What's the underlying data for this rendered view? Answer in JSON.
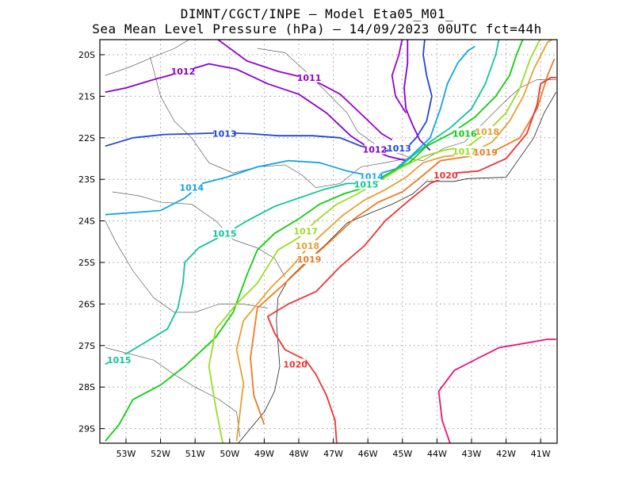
{
  "title_line1": "DIMNT/CGCT/INPE –  Model Eta05_M01_",
  "title_line2": "Sea Mean Level Pressure (hPa) – 14/09/2023 00UTC fct=44h",
  "lat_labels": [
    "20S",
    "21S",
    "22S",
    "23S",
    "24S",
    "25S",
    "26S",
    "27S",
    "28S",
    "29S"
  ],
  "lon_labels": [
    "53W",
    "52W",
    "51W",
    "50W",
    "49W",
    "48W",
    "47W",
    "46W",
    "45W",
    "44W",
    "43W",
    "42W",
    "41W"
  ],
  "colors": {
    "1011": "#9900cc",
    "1012": "#8800cc",
    "1013": "#2244dd",
    "1014": "#11a3e8",
    "1015": "#11c49a",
    "1016": "#11cc11",
    "1017": "#99dd22",
    "1018": "#e6a030",
    "1019": "#ee7a22",
    "1020": "#ee3333",
    "1021": "#ee1177"
  },
  "contour_labels": [
    {
      "text": "1011",
      "lev": "1011",
      "lon": -47.7,
      "lat": -20.55
    },
    {
      "text": "1012",
      "lev": "1012",
      "lon": -51.35,
      "lat": -20.4
    },
    {
      "text": "1012",
      "lev": "1012",
      "lon": -45.8,
      "lat": -22.28
    },
    {
      "text": "1013",
      "lev": "1013",
      "lon": -50.15,
      "lat": -21.9
    },
    {
      "text": "1013",
      "lev": "1013",
      "lon": -45.1,
      "lat": -22.25
    },
    {
      "text": "1014",
      "lev": "1014",
      "lon": -51.1,
      "lat": -23.2
    },
    {
      "text": "1014",
      "lev": "1014",
      "lon": -45.9,
      "lat": -22.93
    },
    {
      "text": "1015",
      "lev": "1015",
      "lon": -50.15,
      "lat": -24.3
    },
    {
      "text": "1015",
      "lev": "1015",
      "lon": -46.05,
      "lat": -23.12
    },
    {
      "text": "1015",
      "lev": "1015",
      "lon": -53.2,
      "lat": -27.35
    },
    {
      "text": "1016",
      "lev": "1016",
      "lon": -43.2,
      "lat": -21.9
    },
    {
      "text": "1017",
      "lev": "1017",
      "lon": -47.8,
      "lat": -24.25
    },
    {
      "text": "1017",
      "lev": "1017",
      "lon": -43.2,
      "lat": -22.33
    },
    {
      "text": "1018",
      "lev": "1018",
      "lon": -47.75,
      "lat": -24.6
    },
    {
      "text": "1018",
      "lev": "1018",
      "lon": -42.55,
      "lat": -21.85
    },
    {
      "text": "1019",
      "lev": "1019",
      "lon": -47.7,
      "lat": -24.92
    },
    {
      "text": "1019",
      "lev": "1019",
      "lon": -42.6,
      "lat": -22.35
    },
    {
      "text": "1020",
      "lev": "1020",
      "lon": -43.75,
      "lat": -22.9
    },
    {
      "text": "1020",
      "lev": "1020",
      "lon": -48.1,
      "lat": -27.45
    }
  ],
  "isobars": [
    {
      "lev": "1011",
      "pts": [
        [
          -50.4,
          -19.6
        ],
        [
          -49.5,
          -20.15
        ],
        [
          -48.6,
          -20.4
        ],
        [
          -47.6,
          -20.6
        ],
        [
          -46.8,
          -20.95
        ],
        [
          -46.1,
          -21.5
        ],
        [
          -45.6,
          -21.9
        ],
        [
          -45.3,
          -22.05
        ]
      ]
    },
    {
      "lev": "1011",
      "pts": [
        [
          -45.0,
          -19.6
        ],
        [
          -45.1,
          -20.0
        ],
        [
          -45.3,
          -20.5
        ],
        [
          -45.2,
          -21.0
        ],
        [
          -44.9,
          -21.4
        ]
      ]
    },
    {
      "lev": "1012",
      "pts": [
        [
          -53.6,
          -20.9
        ],
        [
          -53.0,
          -20.8
        ],
        [
          -52.2,
          -20.6
        ],
        [
          -51.4,
          -20.42
        ],
        [
          -50.6,
          -20.22
        ],
        [
          -49.8,
          -20.35
        ],
        [
          -48.9,
          -20.7
        ],
        [
          -48.0,
          -20.95
        ],
        [
          -47.2,
          -21.4
        ],
        [
          -46.5,
          -21.95
        ],
        [
          -45.9,
          -22.28
        ],
        [
          -45.4,
          -22.45
        ],
        [
          -44.9,
          -22.55
        ]
      ]
    },
    {
      "lev": "1012",
      "pts": [
        [
          -44.85,
          -19.6
        ],
        [
          -44.85,
          -20.2
        ],
        [
          -44.95,
          -20.8
        ],
        [
          -44.9,
          -21.3
        ],
        [
          -44.7,
          -21.7
        ],
        [
          -44.5,
          -22.05
        ],
        [
          -44.2,
          -22.3
        ]
      ]
    },
    {
      "lev": "1013",
      "pts": [
        [
          -53.6,
          -22.2
        ],
        [
          -52.8,
          -22.0
        ],
        [
          -51.9,
          -21.92
        ],
        [
          -51.0,
          -21.9
        ],
        [
          -50.2,
          -21.88
        ],
        [
          -49.4,
          -21.9
        ],
        [
          -48.6,
          -21.95
        ],
        [
          -47.6,
          -21.95
        ],
        [
          -46.8,
          -22.0
        ],
        [
          -46.2,
          -22.2
        ],
        [
          -45.6,
          -22.3
        ],
        [
          -45.0,
          -22.35
        ],
        [
          -44.6,
          -22.0
        ],
        [
          -44.3,
          -21.6
        ],
        [
          -44.15,
          -21.0
        ],
        [
          -44.3,
          -20.5
        ],
        [
          -44.4,
          -20.0
        ],
        [
          -44.35,
          -19.6
        ]
      ]
    },
    {
      "lev": "1014",
      "pts": [
        [
          -53.6,
          -23.85
        ],
        [
          -52.8,
          -23.8
        ],
        [
          -52.0,
          -23.75
        ],
        [
          -51.3,
          -23.45
        ],
        [
          -50.8,
          -23.1
        ],
        [
          -50.1,
          -22.95
        ],
        [
          -49.2,
          -22.7
        ],
        [
          -48.3,
          -22.55
        ],
        [
          -47.4,
          -22.6
        ],
        [
          -46.6,
          -22.8
        ],
        [
          -45.9,
          -22.92
        ],
        [
          -45.2,
          -22.75
        ],
        [
          -44.7,
          -22.4
        ],
        [
          -44.2,
          -22.0
        ],
        [
          -43.9,
          -21.3
        ],
        [
          -43.7,
          -20.7
        ],
        [
          -43.4,
          -20.2
        ],
        [
          -43.1,
          -19.9
        ],
        [
          -42.9,
          -19.8
        ]
      ]
    },
    {
      "lev": "1015",
      "pts": [
        [
          -53.6,
          -27.45
        ],
        [
          -53.0,
          -27.2
        ],
        [
          -52.4,
          -26.9
        ],
        [
          -51.8,
          -26.6
        ],
        [
          -51.5,
          -26.1
        ],
        [
          -51.35,
          -25.5
        ],
        [
          -51.3,
          -25.0
        ],
        [
          -50.9,
          -24.65
        ],
        [
          -50.2,
          -24.35
        ],
        [
          -49.5,
          -24.0
        ],
        [
          -48.7,
          -23.65
        ],
        [
          -48.0,
          -23.45
        ],
        [
          -47.3,
          -23.25
        ],
        [
          -46.6,
          -23.1
        ],
        [
          -45.9,
          -23.1
        ],
        [
          -45.2,
          -22.8
        ],
        [
          -44.8,
          -22.5
        ],
        [
          -44.2,
          -22.1
        ],
        [
          -43.6,
          -21.75
        ],
        [
          -43.0,
          -21.3
        ],
        [
          -42.6,
          -20.7
        ],
        [
          -42.3,
          -20.0
        ],
        [
          -42.2,
          -19.6
        ]
      ]
    },
    {
      "lev": "1016",
      "pts": [
        [
          -53.6,
          -29.3
        ],
        [
          -53.2,
          -28.9
        ],
        [
          -52.8,
          -28.3
        ],
        [
          -52.0,
          -27.95
        ],
        [
          -51.3,
          -27.5
        ],
        [
          -50.4,
          -26.8
        ],
        [
          -49.9,
          -26.2
        ],
        [
          -49.5,
          -25.3
        ],
        [
          -49.2,
          -24.7
        ],
        [
          -48.7,
          -24.3
        ],
        [
          -48.0,
          -23.95
        ],
        [
          -47.4,
          -23.6
        ],
        [
          -46.7,
          -23.35
        ],
        [
          -46.1,
          -23.2
        ],
        [
          -45.5,
          -22.9
        ],
        [
          -44.8,
          -22.6
        ],
        [
          -44.3,
          -22.2
        ],
        [
          -43.6,
          -21.9
        ],
        [
          -42.9,
          -21.5
        ],
        [
          -42.3,
          -21.0
        ],
        [
          -41.9,
          -20.5
        ],
        [
          -41.7,
          -20.0
        ],
        [
          -41.5,
          -19.6
        ]
      ]
    },
    {
      "lev": "1017",
      "pts": [
        [
          -50.2,
          -29.35
        ],
        [
          -50.4,
          -28.5
        ],
        [
          -50.6,
          -27.5
        ],
        [
          -50.4,
          -26.6
        ],
        [
          -49.8,
          -26.0
        ],
        [
          -49.2,
          -25.5
        ],
        [
          -48.6,
          -24.7
        ],
        [
          -48.0,
          -24.4
        ],
        [
          -47.5,
          -24.0
        ],
        [
          -46.9,
          -23.6
        ],
        [
          -46.3,
          -23.35
        ],
        [
          -45.7,
          -23.05
        ],
        [
          -45.1,
          -22.75
        ],
        [
          -44.4,
          -22.45
        ],
        [
          -43.8,
          -22.3
        ],
        [
          -43.1,
          -22.2
        ],
        [
          -42.6,
          -21.9
        ],
        [
          -42.0,
          -21.4
        ],
        [
          -41.6,
          -20.8
        ],
        [
          -41.3,
          -20.1
        ],
        [
          -41.0,
          -19.6
        ]
      ]
    },
    {
      "lev": "1018",
      "pts": [
        [
          -49.8,
          -29.3
        ],
        [
          -49.7,
          -28.6
        ],
        [
          -49.6,
          -27.9
        ],
        [
          -49.8,
          -27.1
        ],
        [
          -49.6,
          -26.4
        ],
        [
          -48.8,
          -25.6
        ],
        [
          -48.2,
          -25.1
        ],
        [
          -47.8,
          -24.7
        ],
        [
          -47.3,
          -24.3
        ],
        [
          -46.7,
          -23.85
        ],
        [
          -46.1,
          -23.5
        ],
        [
          -45.5,
          -23.25
        ],
        [
          -44.9,
          -22.95
        ],
        [
          -44.4,
          -22.6
        ],
        [
          -43.8,
          -22.45
        ],
        [
          -43.1,
          -22.4
        ],
        [
          -42.4,
          -22.1
        ],
        [
          -41.9,
          -21.6
        ],
        [
          -41.5,
          -21.0
        ],
        [
          -41.2,
          -20.35
        ],
        [
          -40.8,
          -19.7
        ],
        [
          -40.6,
          -19.6
        ]
      ]
    },
    {
      "lev": "1019",
      "pts": [
        [
          -49.0,
          -28.9
        ],
        [
          -49.3,
          -28.2
        ],
        [
          -49.4,
          -27.3
        ],
        [
          -49.2,
          -26.1
        ],
        [
          -48.4,
          -25.5
        ],
        [
          -47.7,
          -24.95
        ],
        [
          -47.1,
          -24.5
        ],
        [
          -46.4,
          -23.95
        ],
        [
          -45.7,
          -23.55
        ],
        [
          -45.0,
          -23.3
        ],
        [
          -44.4,
          -22.9
        ],
        [
          -43.9,
          -22.55
        ],
        [
          -43.1,
          -22.45
        ],
        [
          -42.3,
          -22.3
        ],
        [
          -41.6,
          -22.0
        ],
        [
          -41.1,
          -21.3
        ],
        [
          -40.8,
          -20.5
        ],
        [
          -40.6,
          -20.1
        ]
      ]
    },
    {
      "lev": "1020",
      "pts": [
        [
          -46.9,
          -29.4
        ],
        [
          -46.95,
          -28.8
        ],
        [
          -47.2,
          -28.2
        ],
        [
          -47.5,
          -27.7
        ],
        [
          -47.8,
          -27.35
        ],
        [
          -48.4,
          -27.1
        ],
        [
          -48.7,
          -26.7
        ],
        [
          -48.9,
          -26.3
        ],
        [
          -48.3,
          -26.0
        ],
        [
          -47.5,
          -25.7
        ],
        [
          -46.8,
          -25.1
        ],
        [
          -46.1,
          -24.6
        ],
        [
          -45.5,
          -24.0
        ],
        [
          -44.8,
          -23.5
        ],
        [
          -44.2,
          -23.1
        ],
        [
          -43.5,
          -22.85
        ],
        [
          -42.8,
          -22.8
        ],
        [
          -42.0,
          -22.5
        ],
        [
          -41.4,
          -21.9
        ],
        [
          -41.1,
          -21.2
        ],
        [
          -41.0,
          -20.7
        ],
        [
          -40.7,
          -20.55
        ],
        [
          -40.55,
          -20.55
        ]
      ]
    },
    {
      "lev": "1021",
      "pts": [
        [
          -43.6,
          -29.4
        ],
        [
          -43.85,
          -28.8
        ],
        [
          -43.95,
          -28.1
        ],
        [
          -43.5,
          -27.6
        ],
        [
          -42.8,
          -27.3
        ],
        [
          -42.2,
          -27.05
        ],
        [
          -41.5,
          -26.95
        ],
        [
          -40.8,
          -26.85
        ],
        [
          -40.55,
          -26.85
        ]
      ]
    }
  ],
  "coast": [
    [
      -40.55,
      -20.9
    ],
    [
      -40.9,
      -21.4
    ],
    [
      -41.2,
      -22.0
    ],
    [
      -42.0,
      -22.95
    ],
    [
      -43.1,
      -22.98
    ],
    [
      -43.5,
      -23.05
    ],
    [
      -44.3,
      -23.05
    ],
    [
      -44.7,
      -23.35
    ],
    [
      -45.3,
      -23.6
    ],
    [
      -45.9,
      -23.8
    ],
    [
      -46.6,
      -24.05
    ],
    [
      -47.2,
      -24.55
    ],
    [
      -47.8,
      -25.0
    ],
    [
      -48.3,
      -25.4
    ],
    [
      -48.6,
      -25.85
    ],
    [
      -48.65,
      -26.4
    ],
    [
      -48.6,
      -26.95
    ],
    [
      -48.55,
      -27.5
    ],
    [
      -48.7,
      -28.1
    ],
    [
      -49.0,
      -28.6
    ],
    [
      -49.5,
      -29.1
    ],
    [
      -49.8,
      -29.4
    ]
  ],
  "borders": [
    [
      [
        -53.6,
        -20.5
      ],
      [
        -52.9,
        -20.3
      ],
      [
        -52.2,
        -20.05
      ],
      [
        -51.6,
        -19.85
      ],
      [
        -51.1,
        -19.6
      ]
    ],
    [
      [
        -52.3,
        -20.05
      ],
      [
        -52.0,
        -21.0
      ],
      [
        -51.6,
        -21.6
      ],
      [
        -51.1,
        -22.0
      ],
      [
        -50.6,
        -22.6
      ],
      [
        -49.9,
        -22.85
      ],
      [
        -49.2,
        -22.7
      ],
      [
        -48.4,
        -22.65
      ],
      [
        -47.9,
        -22.9
      ],
      [
        -47.5,
        -23.2
      ],
      [
        -46.8,
        -23.1
      ],
      [
        -46.2,
        -22.7
      ],
      [
        -45.5,
        -22.6
      ],
      [
        -44.9,
        -22.5
      ]
    ],
    [
      [
        -49.2,
        -19.85
      ],
      [
        -48.4,
        -19.95
      ],
      [
        -47.8,
        -20.4
      ],
      [
        -47.2,
        -20.9
      ],
      [
        -46.6,
        -21.4
      ],
      [
        -46.3,
        -21.85
      ],
      [
        -45.8,
        -22.15
      ],
      [
        -45.2,
        -22.35
      ],
      [
        -44.7,
        -22.5
      ]
    ],
    [
      [
        -53.6,
        -24.0
      ],
      [
        -53.3,
        -24.5
      ],
      [
        -52.8,
        -25.2
      ],
      [
        -52.2,
        -25.85
      ],
      [
        -51.6,
        -26.2
      ],
      [
        -51.0,
        -26.2
      ],
      [
        -50.3,
        -26.0
      ],
      [
        -49.6,
        -26.0
      ],
      [
        -48.9,
        -26.1
      ]
    ],
    [
      [
        -53.6,
        -27.05
      ],
      [
        -52.9,
        -27.2
      ],
      [
        -52.2,
        -27.35
      ],
      [
        -51.6,
        -27.7
      ],
      [
        -51.0,
        -28.0
      ],
      [
        -50.3,
        -28.3
      ],
      [
        -49.8,
        -28.6
      ],
      [
        -49.7,
        -29.2
      ]
    ],
    [
      [
        -48.4,
        -25.35
      ],
      [
        -48.7,
        -24.9
      ],
      [
        -49.2,
        -24.65
      ],
      [
        -49.9,
        -24.45
      ],
      [
        -50.4,
        -24.0
      ],
      [
        -51.1,
        -23.6
      ],
      [
        -52.0,
        -23.55
      ],
      [
        -52.6,
        -23.4
      ],
      [
        -53.4,
        -23.3
      ]
    ],
    [
      [
        -44.9,
        -22.5
      ],
      [
        -44.4,
        -22.55
      ],
      [
        -43.8,
        -22.25
      ],
      [
        -43.2,
        -22.1
      ],
      [
        -42.6,
        -21.6
      ],
      [
        -42.0,
        -21.1
      ],
      [
        -41.6,
        -20.8
      ],
      [
        -41.1,
        -20.6
      ],
      [
        -40.55,
        -20.6
      ]
    ]
  ]
}
